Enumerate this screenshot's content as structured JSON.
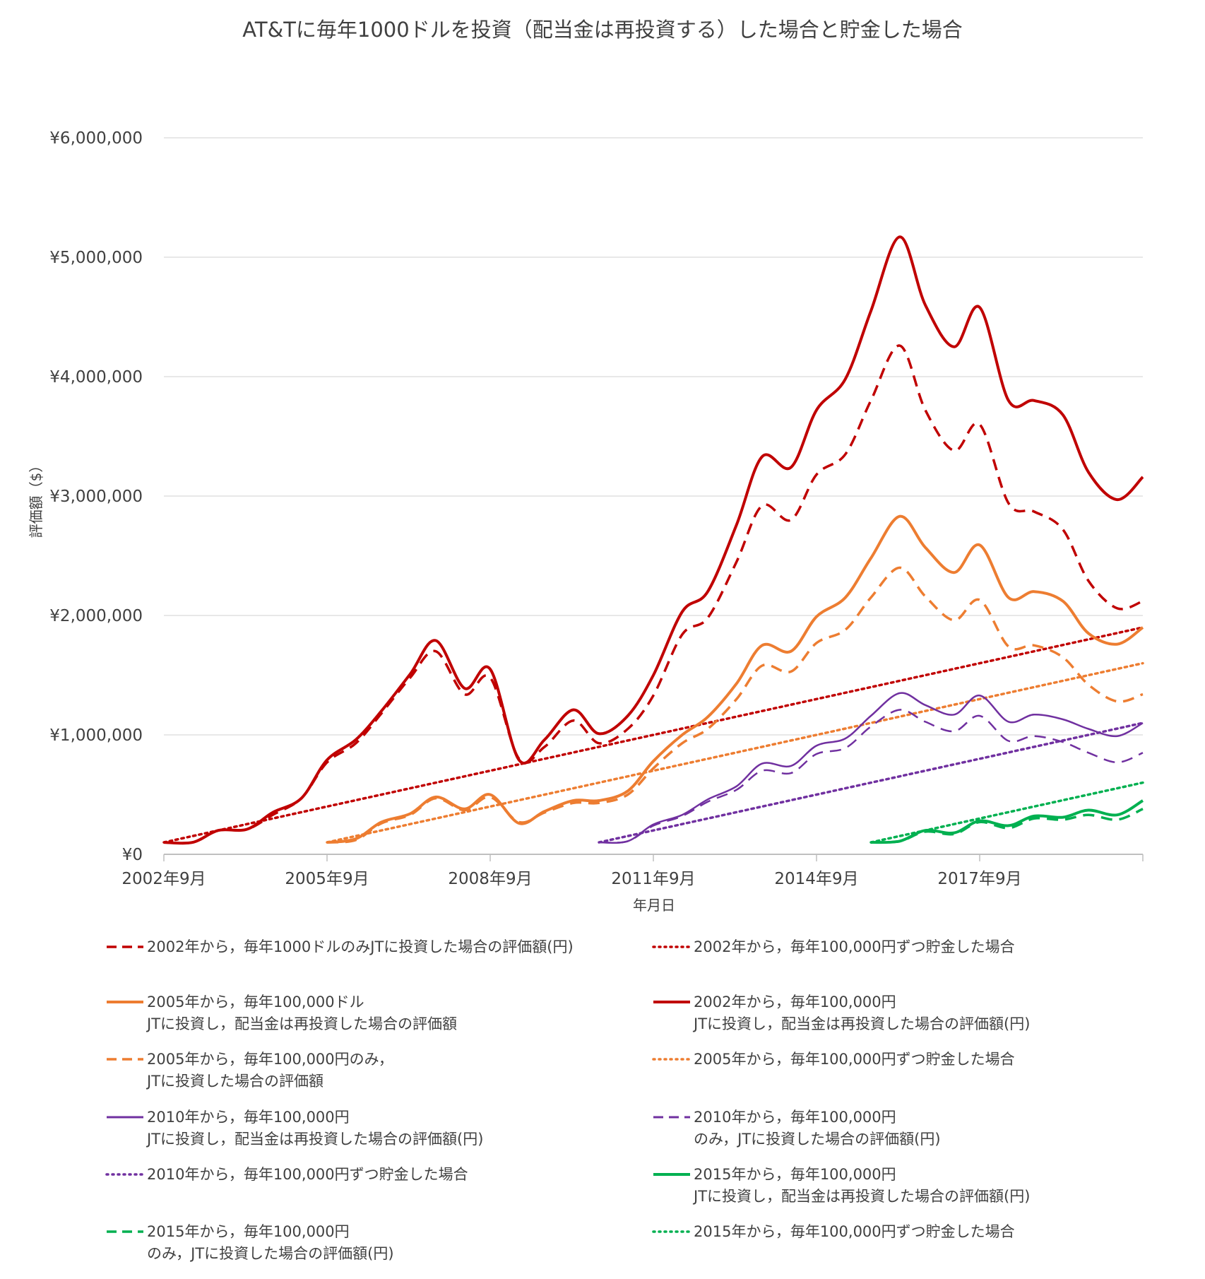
{
  "chart_data": {
    "type": "line",
    "title": "AT&Tに毎年1000ドルを投資（配当金は再投資する）した場合と貯金した場合",
    "xlabel": "年月日",
    "ylabel": "評価額（$）",
    "x_ticks": [
      "2002年9月",
      "2005年9月",
      "2008年9月",
      "2011年9月",
      "2014年9月",
      "2017年9月"
    ],
    "x_range": [
      2002.67,
      2020.67
    ],
    "y_ticks": [
      "¥0",
      "¥1,000,000",
      "¥2,000,000",
      "¥3,000,000",
      "¥4,000,000",
      "¥5,000,000",
      "¥6,000,000"
    ],
    "ylim": [
      0,
      6000000
    ],
    "grid": "horizontal",
    "legend_position": "bottom",
    "series": [
      {
        "name": "2002年から，毎年1000ドルのみJTに投資した場合の評価額(円)",
        "color": "#C00000",
        "style": "dashed",
        "width": 3.5,
        "points": [
          [
            2002.67,
            100000
          ],
          [
            2003.2,
            100000
          ],
          [
            2003.67,
            200000
          ],
          [
            2004.2,
            210000
          ],
          [
            2004.67,
            330000
          ],
          [
            2005.2,
            470000
          ],
          [
            2005.67,
            770000
          ],
          [
            2006.2,
            930000
          ],
          [
            2006.67,
            1180000
          ],
          [
            2007.2,
            1480000
          ],
          [
            2007.67,
            1700000
          ],
          [
            2008.2,
            1340000
          ],
          [
            2008.67,
            1480000
          ],
          [
            2009.2,
            800000
          ],
          [
            2009.67,
            900000
          ],
          [
            2010.2,
            1120000
          ],
          [
            2010.67,
            930000
          ],
          [
            2011.2,
            1050000
          ],
          [
            2011.67,
            1330000
          ],
          [
            2012.2,
            1840000
          ],
          [
            2012.67,
            1980000
          ],
          [
            2013.2,
            2450000
          ],
          [
            2013.67,
            2920000
          ],
          [
            2014.2,
            2800000
          ],
          [
            2014.67,
            3180000
          ],
          [
            2015.2,
            3350000
          ],
          [
            2015.67,
            3800000
          ],
          [
            2016.2,
            4260000
          ],
          [
            2016.67,
            3720000
          ],
          [
            2017.2,
            3380000
          ],
          [
            2017.67,
            3600000
          ],
          [
            2018.2,
            2940000
          ],
          [
            2018.67,
            2870000
          ],
          [
            2019.2,
            2720000
          ],
          [
            2019.67,
            2290000
          ],
          [
            2020.2,
            2060000
          ],
          [
            2020.67,
            2120000
          ]
        ]
      },
      {
        "name": "2002年から，毎年100,000円ずつ貯金した場合",
        "color": "#C00000",
        "style": "dotted",
        "width": 3.5,
        "points": [
          [
            2002.67,
            100000
          ],
          [
            2003.67,
            200000
          ],
          [
            2004.67,
            300000
          ],
          [
            2005.67,
            400000
          ],
          [
            2006.67,
            500000
          ],
          [
            2007.67,
            600000
          ],
          [
            2008.67,
            700000
          ],
          [
            2009.67,
            800000
          ],
          [
            2010.67,
            900000
          ],
          [
            2011.67,
            1000000
          ],
          [
            2012.67,
            1100000
          ],
          [
            2013.67,
            1200000
          ],
          [
            2014.67,
            1300000
          ],
          [
            2015.67,
            1400000
          ],
          [
            2016.67,
            1500000
          ],
          [
            2017.67,
            1600000
          ],
          [
            2018.67,
            1700000
          ],
          [
            2019.67,
            1800000
          ],
          [
            2020.67,
            1900000
          ]
        ]
      },
      {
        "name": "2005年から，毎年100,000ドル\nJTに投資し，配当金は再投資した場合の評価額",
        "color": "#ED7D31",
        "style": "solid",
        "width": 4,
        "points": [
          [
            2005.67,
            100000
          ],
          [
            2006.2,
            130000
          ],
          [
            2006.67,
            270000
          ],
          [
            2007.2,
            340000
          ],
          [
            2007.67,
            480000
          ],
          [
            2008.2,
            380000
          ],
          [
            2008.67,
            500000
          ],
          [
            2009.2,
            260000
          ],
          [
            2009.67,
            360000
          ],
          [
            2010.2,
            450000
          ],
          [
            2010.67,
            450000
          ],
          [
            2011.2,
            530000
          ],
          [
            2011.67,
            780000
          ],
          [
            2012.2,
            1000000
          ],
          [
            2012.67,
            1150000
          ],
          [
            2013.2,
            1430000
          ],
          [
            2013.67,
            1750000
          ],
          [
            2014.2,
            1700000
          ],
          [
            2014.67,
            1990000
          ],
          [
            2015.2,
            2150000
          ],
          [
            2015.67,
            2480000
          ],
          [
            2016.2,
            2830000
          ],
          [
            2016.67,
            2570000
          ],
          [
            2017.2,
            2360000
          ],
          [
            2017.67,
            2590000
          ],
          [
            2018.2,
            2150000
          ],
          [
            2018.67,
            2200000
          ],
          [
            2019.2,
            2120000
          ],
          [
            2019.67,
            1850000
          ],
          [
            2020.2,
            1760000
          ],
          [
            2020.67,
            1900000
          ]
        ]
      },
      {
        "name": "2002年から，毎年100,000円\nJTに投資し，配当金は再投資した場合の評価額(円)",
        "color": "#C00000",
        "style": "solid",
        "width": 4,
        "points": [
          [
            2002.67,
            100000
          ],
          [
            2003.2,
            100000
          ],
          [
            2003.67,
            200000
          ],
          [
            2004.2,
            210000
          ],
          [
            2004.67,
            350000
          ],
          [
            2005.2,
            470000
          ],
          [
            2005.67,
            790000
          ],
          [
            2006.2,
            960000
          ],
          [
            2006.67,
            1200000
          ],
          [
            2007.2,
            1510000
          ],
          [
            2007.67,
            1790000
          ],
          [
            2008.2,
            1390000
          ],
          [
            2008.67,
            1550000
          ],
          [
            2009.2,
            790000
          ],
          [
            2009.67,
            960000
          ],
          [
            2010.2,
            1210000
          ],
          [
            2010.67,
            1010000
          ],
          [
            2011.2,
            1160000
          ],
          [
            2011.67,
            1500000
          ],
          [
            2012.2,
            2030000
          ],
          [
            2012.67,
            2200000
          ],
          [
            2013.2,
            2760000
          ],
          [
            2013.67,
            3330000
          ],
          [
            2014.2,
            3240000
          ],
          [
            2014.67,
            3720000
          ],
          [
            2015.2,
            3980000
          ],
          [
            2015.67,
            4550000
          ],
          [
            2016.2,
            5170000
          ],
          [
            2016.67,
            4600000
          ],
          [
            2017.2,
            4250000
          ],
          [
            2017.67,
            4580000
          ],
          [
            2018.2,
            3800000
          ],
          [
            2018.67,
            3800000
          ],
          [
            2019.2,
            3680000
          ],
          [
            2019.67,
            3200000
          ],
          [
            2020.2,
            2970000
          ],
          [
            2020.67,
            3160000
          ]
        ]
      },
      {
        "name": "2005年から，毎年100,000円のみ，\nJTに投資した場合の評価額",
        "color": "#ED7D31",
        "style": "dashed",
        "width": 3.5,
        "points": [
          [
            2005.67,
            100000
          ],
          [
            2006.2,
            120000
          ],
          [
            2006.67,
            260000
          ],
          [
            2007.2,
            330000
          ],
          [
            2007.67,
            470000
          ],
          [
            2008.2,
            370000
          ],
          [
            2008.67,
            480000
          ],
          [
            2009.2,
            270000
          ],
          [
            2009.67,
            350000
          ],
          [
            2010.2,
            430000
          ],
          [
            2010.67,
            430000
          ],
          [
            2011.2,
            500000
          ],
          [
            2011.67,
            720000
          ],
          [
            2012.2,
            930000
          ],
          [
            2012.67,
            1050000
          ],
          [
            2013.2,
            1300000
          ],
          [
            2013.67,
            1580000
          ],
          [
            2014.2,
            1530000
          ],
          [
            2014.67,
            1770000
          ],
          [
            2015.2,
            1880000
          ],
          [
            2015.67,
            2150000
          ],
          [
            2016.2,
            2400000
          ],
          [
            2016.67,
            2160000
          ],
          [
            2017.2,
            1960000
          ],
          [
            2017.67,
            2130000
          ],
          [
            2018.2,
            1740000
          ],
          [
            2018.67,
            1750000
          ],
          [
            2019.2,
            1650000
          ],
          [
            2019.67,
            1420000
          ],
          [
            2020.2,
            1280000
          ],
          [
            2020.67,
            1340000
          ]
        ]
      },
      {
        "name": "2005年から，毎年100,000円ずつ貯金した場合",
        "color": "#ED7D31",
        "style": "dotted",
        "width": 3.5,
        "points": [
          [
            2005.67,
            100000
          ],
          [
            2006.67,
            200000
          ],
          [
            2007.67,
            300000
          ],
          [
            2008.67,
            400000
          ],
          [
            2009.67,
            500000
          ],
          [
            2010.67,
            600000
          ],
          [
            2011.67,
            700000
          ],
          [
            2012.67,
            800000
          ],
          [
            2013.67,
            900000
          ],
          [
            2014.67,
            1000000
          ],
          [
            2015.67,
            1100000
          ],
          [
            2016.67,
            1200000
          ],
          [
            2017.67,
            1300000
          ],
          [
            2018.67,
            1400000
          ],
          [
            2019.67,
            1500000
          ],
          [
            2020.67,
            1600000
          ]
        ]
      },
      {
        "name": "2010年から，毎年100,000円\nJTに投資し，配当金は再投資した場合の評価額(円)",
        "color": "#7030A0",
        "style": "solid",
        "width": 2.5,
        "points": [
          [
            2010.67,
            100000
          ],
          [
            2011.2,
            110000
          ],
          [
            2011.67,
            250000
          ],
          [
            2012.2,
            330000
          ],
          [
            2012.67,
            460000
          ],
          [
            2013.2,
            570000
          ],
          [
            2013.67,
            760000
          ],
          [
            2014.2,
            740000
          ],
          [
            2014.67,
            910000
          ],
          [
            2015.2,
            970000
          ],
          [
            2015.67,
            1160000
          ],
          [
            2016.2,
            1350000
          ],
          [
            2016.67,
            1250000
          ],
          [
            2017.2,
            1170000
          ],
          [
            2017.67,
            1330000
          ],
          [
            2018.2,
            1110000
          ],
          [
            2018.67,
            1170000
          ],
          [
            2019.2,
            1130000
          ],
          [
            2019.67,
            1050000
          ],
          [
            2020.2,
            990000
          ],
          [
            2020.67,
            1100000
          ]
        ]
      },
      {
        "name": "2010年から，毎年100,000円\nのみ，JTに投資した場合の評価額(円)",
        "color": "#7030A0",
        "style": "dashed",
        "width": 2.5,
        "points": [
          [
            2010.67,
            100000
          ],
          [
            2011.2,
            110000
          ],
          [
            2011.67,
            240000
          ],
          [
            2012.2,
            320000
          ],
          [
            2012.67,
            440000
          ],
          [
            2013.2,
            540000
          ],
          [
            2013.67,
            700000
          ],
          [
            2014.2,
            680000
          ],
          [
            2014.67,
            840000
          ],
          [
            2015.2,
            890000
          ],
          [
            2015.67,
            1070000
          ],
          [
            2016.2,
            1210000
          ],
          [
            2016.67,
            1110000
          ],
          [
            2017.2,
            1030000
          ],
          [
            2017.67,
            1160000
          ],
          [
            2018.2,
            950000
          ],
          [
            2018.67,
            990000
          ],
          [
            2019.2,
            940000
          ],
          [
            2019.67,
            850000
          ],
          [
            2020.2,
            770000
          ],
          [
            2020.67,
            850000
          ]
        ]
      },
      {
        "name": "2010年から，毎年100,000円ずつ貯金した場合",
        "color": "#7030A0",
        "style": "dotted",
        "width": 3.5,
        "points": [
          [
            2010.67,
            100000
          ],
          [
            2011.67,
            200000
          ],
          [
            2012.67,
            300000
          ],
          [
            2013.67,
            400000
          ],
          [
            2014.67,
            500000
          ],
          [
            2015.67,
            600000
          ],
          [
            2016.67,
            700000
          ],
          [
            2017.67,
            800000
          ],
          [
            2018.67,
            900000
          ],
          [
            2019.67,
            1000000
          ],
          [
            2020.67,
            1100000
          ]
        ]
      },
      {
        "name": "2015年から，毎年100,000円\nJTに投資し，配当金は再投資した場合の評価額(円)",
        "color": "#00B050",
        "style": "solid",
        "width": 4,
        "points": [
          [
            2015.67,
            100000
          ],
          [
            2016.2,
            110000
          ],
          [
            2016.67,
            200000
          ],
          [
            2017.2,
            180000
          ],
          [
            2017.67,
            280000
          ],
          [
            2018.2,
            240000
          ],
          [
            2018.67,
            320000
          ],
          [
            2019.2,
            310000
          ],
          [
            2019.67,
            370000
          ],
          [
            2020.2,
            330000
          ],
          [
            2020.67,
            450000
          ]
        ]
      },
      {
        "name": "2015年から，毎年100,000円\nのみ，JTに投資した場合の評価額(円)",
        "color": "#00B050",
        "style": "dashed",
        "width": 3.5,
        "points": [
          [
            2015.67,
            100000
          ],
          [
            2016.2,
            110000
          ],
          [
            2016.67,
            190000
          ],
          [
            2017.2,
            170000
          ],
          [
            2017.67,
            270000
          ],
          [
            2018.2,
            220000
          ],
          [
            2018.67,
            300000
          ],
          [
            2019.2,
            290000
          ],
          [
            2019.67,
            330000
          ],
          [
            2020.2,
            290000
          ],
          [
            2020.67,
            380000
          ]
        ]
      },
      {
        "name": "2015年から，毎年100,000円ずつ貯金した場合",
        "color": "#00B050",
        "style": "dotted",
        "width": 3.5,
        "points": [
          [
            2015.67,
            100000
          ],
          [
            2016.67,
            200000
          ],
          [
            2017.67,
            300000
          ],
          [
            2018.67,
            400000
          ],
          [
            2019.67,
            500000
          ],
          [
            2020.67,
            600000
          ]
        ]
      }
    ]
  }
}
